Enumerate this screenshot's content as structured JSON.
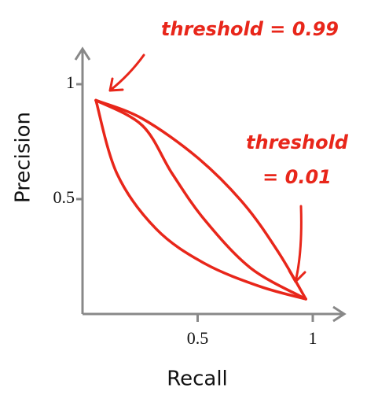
{
  "chart_data": {
    "type": "line",
    "xlabel": "Recall",
    "ylabel": "Precision",
    "xlim": [
      0,
      1.15
    ],
    "ylim": [
      0,
      1.15
    ],
    "xticks": [
      0.5,
      1
    ],
    "yticks": [
      0.5,
      1
    ],
    "series": [
      {
        "color": "#e8261a",
        "x": [
          0.058,
          0.15,
          0.32,
          0.53,
          0.77,
          0.97
        ],
        "values": [
          0.93,
          0.61,
          0.37,
          0.22,
          0.12,
          0.065
        ]
      },
      {
        "color": "#e8261a",
        "x": [
          0.058,
          0.26,
          0.39,
          0.53,
          0.73,
          0.96
        ],
        "values": [
          0.93,
          0.82,
          0.61,
          0.41,
          0.2,
          0.07
        ]
      },
      {
        "color": "#e8261a",
        "x": [
          0.058,
          0.26,
          0.5,
          0.7,
          0.85,
          0.97
        ],
        "values": [
          0.93,
          0.85,
          0.68,
          0.48,
          0.27,
          0.065
        ]
      }
    ],
    "annotations": [
      {
        "lines": [
          "threshold = 0.99"
        ]
      },
      {
        "lines": [
          "threshold",
          "= 0.01"
        ]
      }
    ]
  }
}
